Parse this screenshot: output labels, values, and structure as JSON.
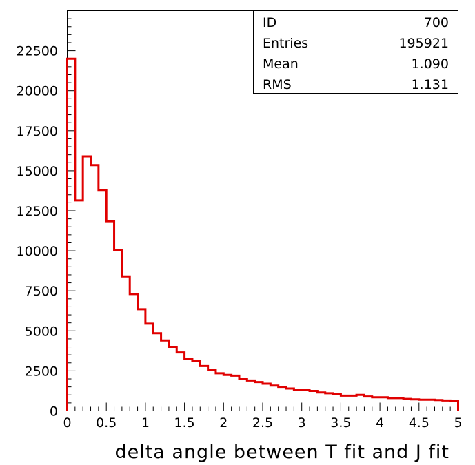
{
  "stats_box": {
    "rows": [
      {
        "label": "ID",
        "value": "700"
      },
      {
        "label": "Entries",
        "value": "195921"
      },
      {
        "label": "Mean",
        "value": "1.090"
      },
      {
        "label": "RMS",
        "value": "1.131"
      }
    ]
  },
  "chart_data": {
    "type": "histogram",
    "title": "",
    "xlabel": "delta angle between T fit and J fit",
    "ylabel": "",
    "xlim": [
      0,
      5
    ],
    "ylim": [
      0,
      25000
    ],
    "grid": false,
    "line_color": "#e00000",
    "bin_width": 0.1,
    "bin_edges_start": 0,
    "values": [
      22000,
      13150,
      15900,
      15350,
      13800,
      11850,
      10050,
      8400,
      7300,
      6350,
      5450,
      4850,
      4400,
      4000,
      3650,
      3250,
      3100,
      2800,
      2550,
      2350,
      2250,
      2200,
      2000,
      1900,
      1800,
      1700,
      1580,
      1500,
      1400,
      1320,
      1300,
      1250,
      1150,
      1100,
      1050,
      950,
      950,
      1000,
      900,
      850,
      850,
      800,
      800,
      750,
      720,
      700,
      700,
      680,
      650,
      600
    ],
    "y_ticks": [
      "0",
      "2500",
      "5000",
      "7500",
      "10000",
      "12500",
      "15000",
      "17500",
      "20000",
      "22500"
    ],
    "x_ticks": [
      "0",
      "0.5",
      "1",
      "1.5",
      "2",
      "2.5",
      "3",
      "3.5",
      "4",
      "4.5",
      "5"
    ]
  }
}
